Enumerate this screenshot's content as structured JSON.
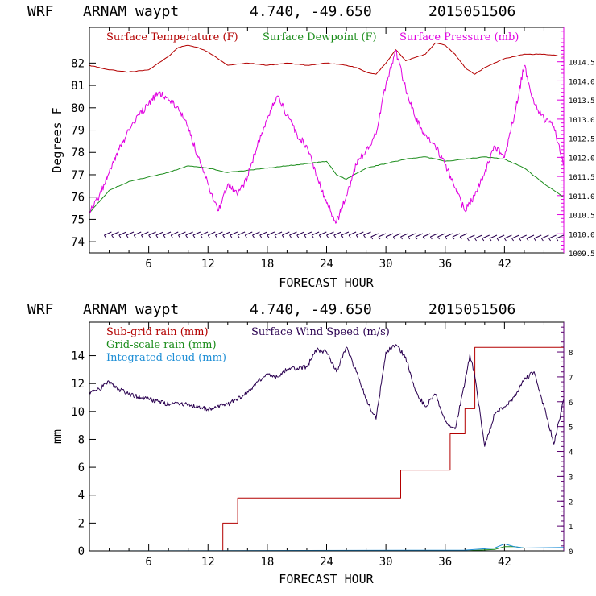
{
  "panels": [
    {
      "title": {
        "model": "WRF",
        "station": "ARNAM waypt",
        "coords": "4.740, -49.650",
        "run": "2015051506"
      },
      "xlabel": "FORECAST HOUR",
      "ylabel": "Degrees F",
      "x_ticks": [
        "6",
        "12",
        "18",
        "24",
        "30",
        "36",
        "42"
      ],
      "y_ticks": [
        "74",
        "75",
        "76",
        "77",
        "78",
        "79",
        "80",
        "81",
        "82"
      ],
      "right_ticks": [
        "1009.5",
        "1010.0",
        "1010.5",
        "1011.0",
        "1011.5",
        "1012.0",
        "1012.5",
        "1013.0",
        "1013.5",
        "1014.0",
        "1014.5"
      ],
      "legend": [
        {
          "label": "Surface Temperature (F)",
          "color": "#b30000"
        },
        {
          "label": "Surface Dewpoint (F)",
          "color": "#1a8c1a"
        },
        {
          "label": "Surface Pressure (mb)",
          "color": "#e000e0"
        }
      ]
    },
    {
      "title": {
        "model": "WRF",
        "station": "ARNAM waypt",
        "coords": "4.740, -49.650",
        "run": "2015051506"
      },
      "xlabel": "FORECAST HOUR",
      "ylabel": "mm",
      "x_ticks": [
        "6",
        "12",
        "18",
        "24",
        "30",
        "36",
        "42"
      ],
      "y_ticks": [
        "0",
        "2",
        "4",
        "6",
        "8",
        "10",
        "12",
        "14"
      ],
      "right_ticks": [
        "0",
        "1",
        "2",
        "3",
        "4",
        "5",
        "6",
        "7",
        "8"
      ],
      "legend": [
        {
          "label": "Sub-grid rain (mm)",
          "color": "#b30000"
        },
        {
          "label": "Grid-scale rain (mm)",
          "color": "#1a8c1a"
        },
        {
          "label": "Integrated cloud (mm)",
          "color": "#1f8fd6"
        },
        {
          "label": "Surface Wind Speed (m/s)",
          "color": "#2a0050"
        }
      ]
    }
  ],
  "chart_data": [
    {
      "type": "line",
      "title": "WRF ARNAM waypt 4.740, -49.650 2015051506",
      "xlabel": "FORECAST HOUR",
      "ylabel": "Degrees F",
      "xlim": [
        0,
        48
      ],
      "ylim": [
        73.5,
        83.6
      ],
      "y2lim": [
        1009.5,
        1015.4
      ],
      "series": [
        {
          "name": "Surface Temperature (F)",
          "axis": "left",
          "x": [
            0,
            2,
            4,
            6,
            8,
            9,
            10,
            11,
            12,
            13,
            14,
            16,
            18,
            20,
            22,
            24,
            26,
            27,
            28,
            29,
            30,
            31,
            32,
            34,
            35,
            36,
            37,
            38,
            39,
            40,
            42,
            44,
            46,
            48
          ],
          "y": [
            81.9,
            81.7,
            81.6,
            81.7,
            82.3,
            82.7,
            82.8,
            82.7,
            82.5,
            82.2,
            81.9,
            82.0,
            81.9,
            82.0,
            81.9,
            82.0,
            81.9,
            81.8,
            81.6,
            81.5,
            82.0,
            82.6,
            82.1,
            82.4,
            82.9,
            82.8,
            82.4,
            81.8,
            81.5,
            81.8,
            82.2,
            82.4,
            82.4,
            82.3
          ]
        },
        {
          "name": "Surface Dewpoint (F)",
          "axis": "left",
          "x": [
            0,
            2,
            4,
            6,
            8,
            10,
            12,
            14,
            16,
            18,
            20,
            22,
            24,
            25,
            26,
            28,
            30,
            32,
            34,
            36,
            38,
            40,
            42,
            44,
            46,
            48
          ],
          "y": [
            75.3,
            76.3,
            76.7,
            76.9,
            77.1,
            77.4,
            77.3,
            77.1,
            77.2,
            77.3,
            77.4,
            77.5,
            77.6,
            77.0,
            76.8,
            77.3,
            77.5,
            77.7,
            77.8,
            77.6,
            77.7,
            77.8,
            77.7,
            77.3,
            76.6,
            76.0
          ]
        },
        {
          "name": "Surface Pressure (mb)",
          "axis": "right",
          "x": [
            0,
            1,
            2,
            3,
            4,
            5,
            6,
            7,
            8,
            9,
            10,
            11,
            12,
            12.5,
            13,
            14,
            15,
            16,
            17,
            18,
            19,
            20,
            21,
            22,
            23,
            24,
            25,
            26,
            27,
            28,
            29,
            30,
            31,
            32,
            33,
            34,
            35,
            36,
            37,
            38,
            39,
            40,
            41,
            42,
            43,
            44,
            45,
            46,
            47,
            48
          ],
          "y": [
            1010.6,
            1011.0,
            1011.6,
            1012.2,
            1012.7,
            1013.1,
            1013.4,
            1013.7,
            1013.5,
            1013.3,
            1012.8,
            1012.0,
            1011.3,
            1010.9,
            1010.6,
            1011.3,
            1011.0,
            1011.5,
            1012.3,
            1013.0,
            1013.6,
            1013.1,
            1012.6,
            1012.3,
            1011.5,
            1010.8,
            1010.3,
            1011.0,
            1011.8,
            1012.2,
            1012.6,
            1013.9,
            1014.8,
            1013.8,
            1013.0,
            1012.6,
            1012.3,
            1011.8,
            1011.2,
            1010.6,
            1011.0,
            1011.6,
            1012.3,
            1012.0,
            1013.1,
            1014.4,
            1013.4,
            1013.0,
            1012.8,
            1011.8
          ]
        }
      ]
    },
    {
      "type": "line",
      "title": "WRF ARNAM waypt 4.740, -49.650 2015051506",
      "xlabel": "FORECAST HOUR",
      "ylabel": "mm",
      "xlim": [
        0,
        48
      ],
      "ylim": [
        0,
        16.4
      ],
      "y2lim": [
        0,
        9.2
      ],
      "series": [
        {
          "name": "Sub-grid rain (mm)",
          "axis": "left",
          "x": [
            0,
            13.5,
            13.5,
            15,
            15,
            31.5,
            31.5,
            36.5,
            36.5,
            38,
            38,
            39,
            39,
            48
          ],
          "y": [
            0,
            0,
            2,
            2,
            3.8,
            3.8,
            5.8,
            5.8,
            8.4,
            8.4,
            10.2,
            10.2,
            14.6,
            14.6
          ]
        },
        {
          "name": "Grid-scale rain (mm)",
          "axis": "left",
          "x": [
            0,
            38,
            41,
            42,
            43,
            44,
            48
          ],
          "y": [
            0,
            0,
            0.1,
            0.3,
            0.3,
            0.2,
            0.2
          ]
        },
        {
          "name": "Integrated cloud (mm)",
          "axis": "left",
          "x": [
            0,
            38,
            41,
            42,
            43,
            44,
            48
          ],
          "y": [
            0,
            0.05,
            0.2,
            0.5,
            0.3,
            0.2,
            0.25
          ]
        },
        {
          "name": "Surface Wind Speed (m/s)",
          "axis": "right",
          "x": [
            0,
            1,
            2,
            3,
            4,
            6,
            8,
            10,
            12,
            14,
            15,
            16,
            17,
            18,
            19,
            20,
            22,
            23,
            24,
            25,
            26,
            27,
            28,
            29,
            30,
            31,
            32,
            33,
            34,
            35,
            36,
            37,
            38,
            38.5,
            39,
            40,
            41,
            42,
            43,
            44,
            45,
            46,
            47,
            48
          ],
          "y": [
            6.4,
            6.5,
            6.8,
            6.5,
            6.3,
            6.1,
            5.9,
            5.9,
            5.7,
            5.9,
            6.1,
            6.4,
            6.8,
            7.1,
            7.0,
            7.3,
            7.4,
            8.1,
            8.0,
            7.2,
            8.2,
            7.2,
            6.1,
            5.3,
            8.0,
            8.3,
            7.8,
            6.4,
            5.8,
            6.3,
            5.2,
            4.9,
            6.8,
            7.9,
            7.0,
            4.2,
            5.5,
            5.8,
            6.2,
            6.9,
            7.2,
            5.8,
            4.3,
            6.1
          ]
        }
      ]
    }
  ]
}
